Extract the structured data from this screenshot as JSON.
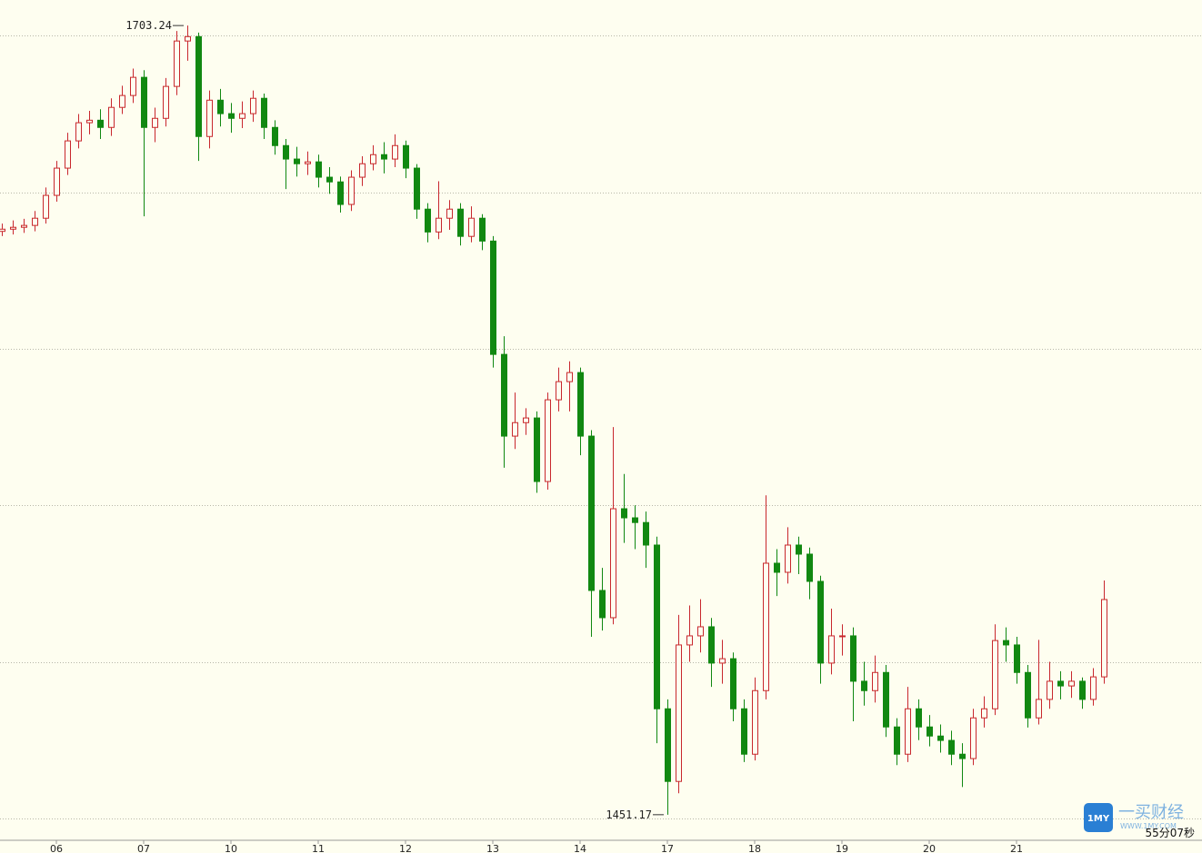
{
  "chart_data": {
    "type": "candlestick",
    "open": [
      1637.5,
      1638.2,
      1638.8,
      1639.4,
      1641.7,
      1649.0,
      1657.7,
      1666.4,
      1672.2,
      1673.0,
      1670.7,
      1677.1,
      1680.9,
      1686.7,
      1670.7,
      1673.6,
      1683.8,
      1698.3,
      1699.7,
      1667.8,
      1679.4,
      1675.1,
      1673.6,
      1675.1,
      1680.0,
      1670.7,
      1664.9,
      1660.6,
      1659.1,
      1659.7,
      1654.8,
      1653.3,
      1646.1,
      1654.8,
      1659.1,
      1662.0,
      1660.6,
      1664.9,
      1657.7,
      1644.6,
      1637.3,
      1641.7,
      1644.6,
      1635.9,
      1641.7,
      1634.4,
      1598.2,
      1572.1,
      1576.4,
      1577.9,
      1557.6,
      1583.7,
      1589.5,
      1592.4,
      1572.1,
      1522.8,
      1514.1,
      1548.9,
      1546.0,
      1544.5,
      1537.3,
      1485.0,
      1461.8,
      1505.4,
      1508.3,
      1511.2,
      1499.6,
      1501.0,
      1485.0,
      1470.5,
      1490.8,
      1531.5,
      1528.6,
      1537.3,
      1534.4,
      1525.7,
      1499.6,
      1508.3,
      1508.3,
      1493.8,
      1490.8,
      1496.6,
      1479.2,
      1470.5,
      1485.0,
      1479.2,
      1476.3,
      1474.9,
      1470.5,
      1469.1,
      1482.1,
      1485.0,
      1506.8,
      1505.4,
      1496.6,
      1482.1,
      1488.0,
      1493.8,
      1492.3,
      1493.8,
      1488.0,
      1495.2
    ],
    "high": [
      1640.0,
      1641.0,
      1641.5,
      1644.0,
      1651.5,
      1660.0,
      1669.0,
      1675.0,
      1676.0,
      1676.5,
      1680.0,
      1684.0,
      1689.5,
      1689.0,
      1677.0,
      1686.5,
      1701.5,
      1703.24,
      1701.0,
      1682.5,
      1683.0,
      1678.5,
      1679.0,
      1682.5,
      1681.5,
      1673.0,
      1667.0,
      1664.5,
      1663.0,
      1662.0,
      1658.0,
      1655.0,
      1657.0,
      1661.5,
      1665.0,
      1666.0,
      1668.5,
      1666.5,
      1659.0,
      1646.5,
      1653.5,
      1647.5,
      1646.5,
      1645.5,
      1643.0,
      1636.0,
      1604.0,
      1586.0,
      1581.0,
      1580.0,
      1586.0,
      1594.0,
      1596.0,
      1594.0,
      1574.0,
      1530.0,
      1575.0,
      1560.0,
      1550.0,
      1548.0,
      1540.0,
      1488.0,
      1515.0,
      1518.0,
      1520.0,
      1514.0,
      1507.0,
      1503.0,
      1488.0,
      1495.0,
      1553.2,
      1536.0,
      1543.0,
      1540.0,
      1536.5,
      1527.5,
      1517.0,
      1512.0,
      1511.0,
      1500.0,
      1502.0,
      1499.0,
      1482.0,
      1492.0,
      1488.0,
      1483.0,
      1480.0,
      1478.0,
      1474.0,
      1485.0,
      1489.0,
      1512.0,
      1511.0,
      1508.0,
      1499.0,
      1507.0,
      1500.0,
      1497.0,
      1497.0,
      1495.0,
      1498.0,
      1526.0
    ],
    "low": [
      1636.0,
      1636.5,
      1637.0,
      1637.5,
      1640.0,
      1647.0,
      1655.5,
      1664.0,
      1668.5,
      1667.0,
      1668.0,
      1675.0,
      1678.5,
      1642.3,
      1666.0,
      1671.0,
      1681.0,
      1692.0,
      1660.0,
      1664.0,
      1671.0,
      1669.0,
      1670.5,
      1672.5,
      1667.0,
      1662.0,
      1651.0,
      1655.0,
      1655.5,
      1651.5,
      1649.5,
      1643.5,
      1644.0,
      1652.0,
      1657.0,
      1656.0,
      1658.0,
      1654.5,
      1641.5,
      1634.0,
      1635.0,
      1638.0,
      1633.0,
      1634.0,
      1631.5,
      1594.0,
      1562.0,
      1568.0,
      1572.5,
      1554.0,
      1555.0,
      1580.0,
      1580.0,
      1566.0,
      1508.0,
      1510.0,
      1512.0,
      1538.0,
      1536.0,
      1530.0,
      1474.0,
      1451.17,
      1458.0,
      1500.0,
      1503.0,
      1492.0,
      1493.0,
      1481.0,
      1468.0,
      1468.5,
      1488.0,
      1521.0,
      1525.0,
      1528.0,
      1520.0,
      1493.0,
      1496.0,
      1502.0,
      1481.0,
      1486.0,
      1487.0,
      1476.0,
      1467.0,
      1468.0,
      1475.0,
      1473.0,
      1471.0,
      1467.0,
      1460.0,
      1467.0,
      1479.0,
      1483.0,
      1500.0,
      1493.0,
      1479.0,
      1480.0,
      1485.0,
      1488.0,
      1488.5,
      1485.0,
      1486.0,
      1493.0
    ],
    "close": [
      1638.2,
      1638.8,
      1639.4,
      1641.7,
      1649.0,
      1657.7,
      1666.4,
      1672.2,
      1673.0,
      1670.7,
      1677.1,
      1680.9,
      1686.7,
      1670.7,
      1673.6,
      1683.8,
      1698.3,
      1699.7,
      1667.8,
      1679.4,
      1675.1,
      1673.6,
      1675.1,
      1680.0,
      1670.7,
      1664.9,
      1660.6,
      1659.1,
      1659.7,
      1654.8,
      1653.3,
      1646.1,
      1654.8,
      1659.1,
      1662.0,
      1660.6,
      1664.9,
      1657.7,
      1644.6,
      1637.3,
      1641.7,
      1644.6,
      1635.9,
      1641.7,
      1634.4,
      1598.2,
      1572.1,
      1576.4,
      1577.9,
      1557.6,
      1583.7,
      1589.5,
      1592.4,
      1572.1,
      1522.8,
      1514.1,
      1548.9,
      1546.0,
      1544.5,
      1537.3,
      1485.0,
      1461.8,
      1505.4,
      1508.3,
      1511.2,
      1499.6,
      1501.0,
      1485.0,
      1470.5,
      1490.8,
      1531.5,
      1528.6,
      1537.3,
      1534.4,
      1525.7,
      1499.6,
      1508.3,
      1508.3,
      1493.8,
      1490.8,
      1496.6,
      1479.2,
      1470.5,
      1485.0,
      1479.2,
      1476.3,
      1474.9,
      1470.5,
      1469.1,
      1482.1,
      1485.0,
      1506.8,
      1505.4,
      1496.6,
      1482.1,
      1488.0,
      1493.8,
      1492.3,
      1493.8,
      1488.0,
      1495.2,
      1519.9
    ],
    "xticks": [
      {
        "value": 5,
        "label": "06"
      },
      {
        "value": 13,
        "label": "07"
      },
      {
        "value": 21,
        "label": "10"
      },
      {
        "value": 29,
        "label": "11"
      },
      {
        "value": 37,
        "label": "12"
      },
      {
        "value": 45,
        "label": "13"
      },
      {
        "value": 53,
        "label": "14"
      },
      {
        "value": 61,
        "label": "17"
      },
      {
        "value": 69,
        "label": "18"
      },
      {
        "value": 77,
        "label": "19"
      },
      {
        "value": 85,
        "label": "20"
      },
      {
        "value": 93,
        "label": "21"
      }
    ],
    "ylim": [
      1443,
      1711.4
    ],
    "yticks": [
      1450,
      1500,
      1550,
      1600,
      1650,
      1700
    ],
    "grid": true,
    "up_color": "#c8282d",
    "down_color": "#118811",
    "countdown": "55分07秒",
    "watermark": {
      "logo": "1MY",
      "name": "一买财经",
      "url": "WWW.1MY.COM"
    }
  }
}
